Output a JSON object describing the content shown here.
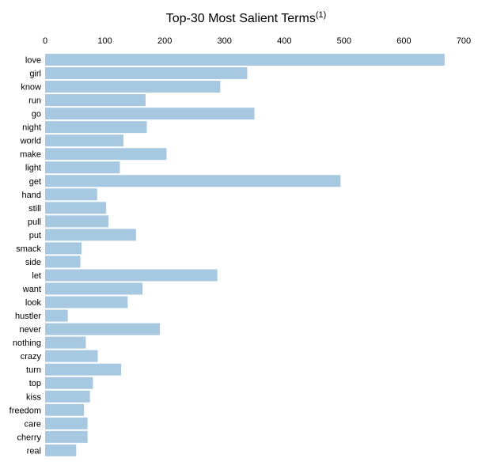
{
  "chart_data": {
    "type": "bar",
    "orientation": "horizontal",
    "title": "Top-30 Most Salient Terms",
    "title_superscript": "(1)",
    "xlim": [
      0,
      700
    ],
    "x_ticks": [
      "0",
      "100",
      "200",
      "300",
      "400",
      "500",
      "600",
      "700"
    ],
    "x_tick_values": [
      0,
      100,
      200,
      300,
      400,
      500,
      600,
      700
    ],
    "axis_position": "top",
    "grid": false,
    "bar_color": "#a6c8e0",
    "categories": [
      "love",
      "girl",
      "know",
      "run",
      "go",
      "night",
      "world",
      "make",
      "light",
      "get",
      "hand",
      "still",
      "pull",
      "put",
      "smack",
      "side",
      "let",
      "want",
      "look",
      "hustler",
      "never",
      "nothing",
      "crazy",
      "turn",
      "top",
      "kiss",
      "freedom",
      "care",
      "cherry",
      "real"
    ],
    "values": [
      668,
      338,
      293,
      168,
      350,
      170,
      131,
      203,
      125,
      494,
      87,
      102,
      106,
      152,
      61,
      59,
      288,
      163,
      138,
      38,
      192,
      68,
      88,
      127,
      80,
      75,
      65,
      71,
      71,
      52
    ]
  }
}
